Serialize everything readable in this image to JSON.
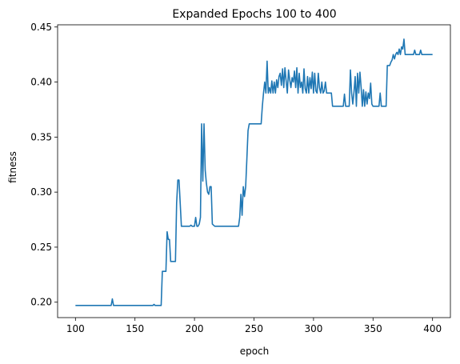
{
  "chart_data": {
    "type": "line",
    "title": "Expanded Epochs 100 to 400",
    "xlabel": "epoch",
    "ylabel": "fitness",
    "xlim": [
      85,
      415
    ],
    "ylim": [
      0.186,
      0.452
    ],
    "xticks": [
      100,
      150,
      200,
      250,
      300,
      350,
      400
    ],
    "yticks": [
      0.2,
      0.25,
      0.3,
      0.35,
      0.4,
      0.45
    ],
    "grid": false,
    "legend": "none",
    "series": [
      {
        "color": "#1f77b4",
        "points": [
          [
            100,
            0.197
          ],
          [
            130,
            0.197
          ],
          [
            131,
            0.203
          ],
          [
            132,
            0.197
          ],
          [
            165,
            0.197
          ],
          [
            166,
            0.198
          ],
          [
            167,
            0.197
          ],
          [
            172,
            0.197
          ],
          [
            173,
            0.228
          ],
          [
            176,
            0.228
          ],
          [
            177,
            0.264
          ],
          [
            178,
            0.257
          ],
          [
            179,
            0.257
          ],
          [
            180,
            0.237
          ],
          [
            184,
            0.237
          ],
          [
            185,
            0.29
          ],
          [
            186,
            0.311
          ],
          [
            187,
            0.311
          ],
          [
            188,
            0.29
          ],
          [
            189,
            0.269
          ],
          [
            196,
            0.269
          ],
          [
            197,
            0.27
          ],
          [
            198,
            0.269
          ],
          [
            200,
            0.269
          ],
          [
            201,
            0.277
          ],
          [
            202,
            0.269
          ],
          [
            203,
            0.269
          ],
          [
            204,
            0.271
          ],
          [
            205,
            0.277
          ],
          [
            206,
            0.362
          ],
          [
            207,
            0.31
          ],
          [
            208,
            0.362
          ],
          [
            209,
            0.32
          ],
          [
            210,
            0.308
          ],
          [
            211,
            0.3
          ],
          [
            212,
            0.298
          ],
          [
            213,
            0.305
          ],
          [
            214,
            0.305
          ],
          [
            215,
            0.271
          ],
          [
            216,
            0.27
          ],
          [
            217,
            0.269
          ],
          [
            237,
            0.269
          ],
          [
            238,
            0.277
          ],
          [
            239,
            0.298
          ],
          [
            240,
            0.279
          ],
          [
            241,
            0.305
          ],
          [
            242,
            0.296
          ],
          [
            243,
            0.305
          ],
          [
            244,
            0.33
          ],
          [
            245,
            0.356
          ],
          [
            246,
            0.362
          ],
          [
            256,
            0.362
          ],
          [
            257,
            0.378
          ],
          [
            258,
            0.39
          ],
          [
            259,
            0.4
          ],
          [
            260,
            0.39
          ],
          [
            261,
            0.419
          ],
          [
            262,
            0.39
          ],
          [
            263,
            0.395
          ],
          [
            264,
            0.39
          ],
          [
            265,
            0.401
          ],
          [
            266,
            0.39
          ],
          [
            267,
            0.4
          ],
          [
            268,
            0.39
          ],
          [
            269,
            0.402
          ],
          [
            270,
            0.395
          ],
          [
            271,
            0.405
          ],
          [
            272,
            0.408
          ],
          [
            273,
            0.397
          ],
          [
            274,
            0.412
          ],
          [
            275,
            0.395
          ],
          [
            276,
            0.413
          ],
          [
            277,
            0.401
          ],
          [
            278,
            0.39
          ],
          [
            279,
            0.411
          ],
          [
            280,
            0.402
          ],
          [
            281,
            0.395
          ],
          [
            282,
            0.404
          ],
          [
            283,
            0.4
          ],
          [
            284,
            0.41
          ],
          [
            285,
            0.395
          ],
          [
            286,
            0.413
          ],
          [
            287,
            0.39
          ],
          [
            288,
            0.408
          ],
          [
            289,
            0.395
          ],
          [
            290,
            0.4
          ],
          [
            291,
            0.39
          ],
          [
            292,
            0.412
          ],
          [
            293,
            0.394
          ],
          [
            294,
            0.39
          ],
          [
            295,
            0.405
          ],
          [
            296,
            0.39
          ],
          [
            297,
            0.404
          ],
          [
            298,
            0.394
          ],
          [
            299,
            0.409
          ],
          [
            300,
            0.39
          ],
          [
            301,
            0.408
          ],
          [
            302,
            0.392
          ],
          [
            303,
            0.39
          ],
          [
            304,
            0.408
          ],
          [
            305,
            0.395
          ],
          [
            306,
            0.39
          ],
          [
            307,
            0.4
          ],
          [
            308,
            0.39
          ],
          [
            309,
            0.392
          ],
          [
            310,
            0.4
          ],
          [
            311,
            0.39
          ],
          [
            315,
            0.39
          ],
          [
            316,
            0.378
          ],
          [
            325,
            0.378
          ],
          [
            326,
            0.389
          ],
          [
            327,
            0.378
          ],
          [
            330,
            0.378
          ],
          [
            331,
            0.411
          ],
          [
            332,
            0.39
          ],
          [
            333,
            0.38
          ],
          [
            334,
            0.391
          ],
          [
            335,
            0.405
          ],
          [
            336,
            0.378
          ],
          [
            337,
            0.408
          ],
          [
            338,
            0.39
          ],
          [
            339,
            0.409
          ],
          [
            340,
            0.395
          ],
          [
            341,
            0.378
          ],
          [
            342,
            0.393
          ],
          [
            343,
            0.378
          ],
          [
            344,
            0.391
          ],
          [
            345,
            0.38
          ],
          [
            346,
            0.39
          ],
          [
            347,
            0.385
          ],
          [
            348,
            0.399
          ],
          [
            349,
            0.38
          ],
          [
            350,
            0.378
          ],
          [
            355,
            0.378
          ],
          [
            356,
            0.39
          ],
          [
            357,
            0.378
          ],
          [
            361,
            0.378
          ],
          [
            362,
            0.415
          ],
          [
            364,
            0.415
          ],
          [
            365,
            0.418
          ],
          [
            366,
            0.42
          ],
          [
            367,
            0.425
          ],
          [
            368,
            0.421
          ],
          [
            369,
            0.425
          ],
          [
            370,
            0.427
          ],
          [
            371,
            0.425
          ],
          [
            372,
            0.43
          ],
          [
            373,
            0.425
          ],
          [
            374,
            0.432
          ],
          [
            375,
            0.43
          ],
          [
            376,
            0.439
          ],
          [
            377,
            0.425
          ],
          [
            384,
            0.425
          ],
          [
            385,
            0.429
          ],
          [
            386,
            0.425
          ],
          [
            389,
            0.425
          ],
          [
            390,
            0.429
          ],
          [
            391,
            0.425
          ],
          [
            400,
            0.425
          ]
        ]
      }
    ]
  }
}
